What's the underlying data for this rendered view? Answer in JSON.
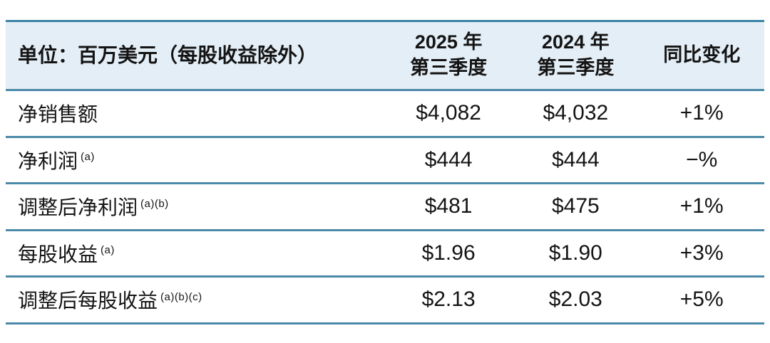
{
  "chart_data": {
    "type": "table",
    "title": "单位：百万美元（每股收益除外）",
    "columns": [
      "单位：百万美元（每股收益除外）",
      "2025 年 第三季度",
      "2024 年 第三季度",
      "同比变化"
    ],
    "rows": [
      [
        "净销售额",
        "$4,082",
        "$4,032",
        "+1%"
      ],
      [
        "净利润 (a)",
        "$444",
        "$444",
        "−%"
      ],
      [
        "调整后净利润 (a)(b)",
        "$481",
        "$475",
        "+1%"
      ],
      [
        "每股收益 (a)",
        "$1.96",
        "$1.90",
        "+3%"
      ],
      [
        "调整后每股收益 (a)(b)(c)",
        "$2.13",
        "$2.03",
        "+5%"
      ]
    ]
  },
  "table": {
    "unit_label": "单位：百万美元（每股收益除外）",
    "columns": [
      {
        "line1": "2025 年",
        "line2": "第三季度"
      },
      {
        "line1": "2024 年",
        "line2": "第三季度"
      },
      {
        "line1": "同比变化",
        "line2": ""
      }
    ],
    "rows": [
      {
        "label": "净销售额",
        "sup": "",
        "q3_2025": "$4,082",
        "q3_2024": "$4,032",
        "yoy": "+1%"
      },
      {
        "label": "净利润",
        "sup": "(a)",
        "q3_2025": "$444",
        "q3_2024": "$444",
        "yoy": "−%"
      },
      {
        "label": "调整后净利润",
        "sup": "(a)(b)",
        "q3_2025": "$481",
        "q3_2024": "$475",
        "yoy": "+1%"
      },
      {
        "label": "每股收益",
        "sup": "(a)",
        "q3_2025": "$1.96",
        "q3_2024": "$1.90",
        "yoy": "+3%"
      },
      {
        "label": "调整后每股收益",
        "sup": "(a)(b)(c)",
        "q3_2025": "$2.13",
        "q3_2024": "$2.03",
        "yoy": "+5%"
      }
    ],
    "colors": {
      "header_bg": "#e4eef6",
      "border_top": "#3b83a6",
      "row_divider": "#4b89a8",
      "text": "#141414"
    }
  }
}
